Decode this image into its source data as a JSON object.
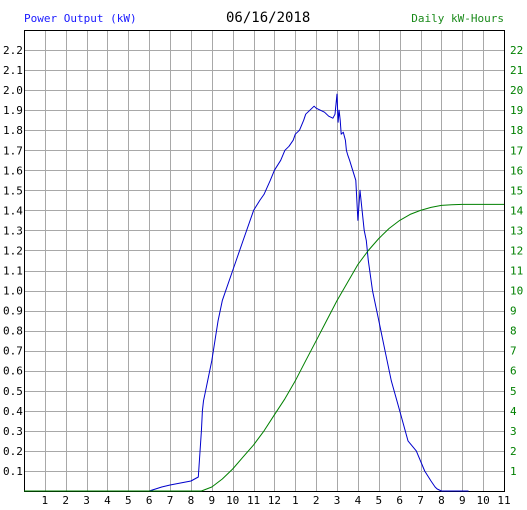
{
  "header": {
    "left_title": "Power Output (kW)",
    "date": "06/16/2018",
    "right_title": "Daily kW-Hours"
  },
  "chart_data": {
    "type": "line",
    "title": "06/16/2018",
    "ylabel": "Power Output (kW)",
    "y2label": "Daily kW-Hours",
    "xlabel": "",
    "grid": true,
    "xlim": [
      0,
      23
    ],
    "ylim": [
      0,
      2.3
    ],
    "y2lim": [
      0,
      23
    ],
    "x_tick_labels": [
      "1",
      "2",
      "3",
      "4",
      "5",
      "6",
      "7",
      "8",
      "9",
      "10",
      "11",
      "12",
      "1",
      "2",
      "3",
      "4",
      "5",
      "6",
      "7",
      "8",
      "9",
      "10",
      "11"
    ],
    "y_tick_labels": [
      "0.1",
      "0.2",
      "0.3",
      "0.4",
      "0.5",
      "0.6",
      "0.7",
      "0.8",
      "0.9",
      "1.0",
      "1.1",
      "1.2",
      "1.3",
      "1.4",
      "1.5",
      "1.6",
      "1.7",
      "1.8",
      "1.9",
      "2.0",
      "2.1",
      "2.2"
    ],
    "y2_tick_labels": [
      "1",
      "2",
      "3",
      "4",
      "5",
      "6",
      "7",
      "8",
      "9",
      "10",
      "11",
      "12",
      "13",
      "14",
      "15",
      "16",
      "17",
      "18",
      "19",
      "20",
      "21",
      "22"
    ],
    "colors": {
      "power": "#0000cc",
      "energy": "#008000",
      "grid": "#a8a8a8"
    },
    "series": [
      {
        "axis": "left",
        "x": [
          6.0,
          6.3,
          6.6,
          7.0,
          7.5,
          8.0,
          8.35,
          8.5,
          8.55,
          8.6,
          8.7,
          9.0,
          9.3,
          9.5,
          10.0,
          10.5,
          11.0,
          11.3,
          11.5,
          11.8,
          12.0,
          12.3,
          12.5,
          12.7,
          12.9,
          13.0,
          13.2,
          13.4,
          13.5,
          13.7,
          13.9,
          14.0,
          14.2,
          14.4,
          14.6,
          14.8,
          14.9,
          15.0,
          15.05,
          15.1,
          15.15,
          15.2,
          15.3,
          15.4,
          15.45,
          15.5,
          15.6,
          15.75,
          15.9,
          16.0,
          16.1,
          16.2,
          16.3,
          16.4,
          16.5,
          16.7,
          16.9,
          17.0,
          17.3,
          17.6,
          18.0,
          18.4,
          18.8,
          19.2,
          19.5,
          19.7,
          19.8,
          20.0,
          20.3,
          20.6,
          21.0,
          21.3
        ],
        "y": [
          0.0,
          0.01,
          0.02,
          0.03,
          0.04,
          0.05,
          0.07,
          0.3,
          0.4,
          0.45,
          0.5,
          0.65,
          0.85,
          0.95,
          1.1,
          1.25,
          1.4,
          1.45,
          1.48,
          1.55,
          1.6,
          1.65,
          1.7,
          1.72,
          1.75,
          1.78,
          1.8,
          1.85,
          1.88,
          1.9,
          1.92,
          1.91,
          1.9,
          1.89,
          1.87,
          1.86,
          1.88,
          1.98,
          1.84,
          1.9,
          1.85,
          1.78,
          1.79,
          1.75,
          1.7,
          1.68,
          1.65,
          1.6,
          1.55,
          1.35,
          1.5,
          1.4,
          1.3,
          1.25,
          1.15,
          1.0,
          0.9,
          0.85,
          0.7,
          0.55,
          0.4,
          0.25,
          0.2,
          0.1,
          0.05,
          0.02,
          0.01,
          0.0,
          0.0,
          0.0,
          0.0,
          0.0
        ]
      },
      {
        "axis": "right",
        "x": [
          0,
          8.5,
          9.0,
          9.5,
          10.0,
          10.5,
          11.0,
          11.5,
          12.0,
          12.5,
          13.0,
          13.5,
          14.0,
          14.5,
          15.0,
          15.5,
          16.0,
          16.5,
          17.0,
          17.5,
          18.0,
          18.5,
          19.0,
          19.5,
          20.0,
          20.5,
          21.0,
          23.0
        ],
        "y": [
          0.0,
          0.0,
          0.2,
          0.6,
          1.1,
          1.7,
          2.3,
          3.0,
          3.8,
          4.6,
          5.5,
          6.5,
          7.5,
          8.5,
          9.5,
          10.4,
          11.3,
          12.0,
          12.6,
          13.1,
          13.5,
          13.8,
          14.0,
          14.15,
          14.25,
          14.28,
          14.3,
          14.3
        ]
      }
    ]
  }
}
